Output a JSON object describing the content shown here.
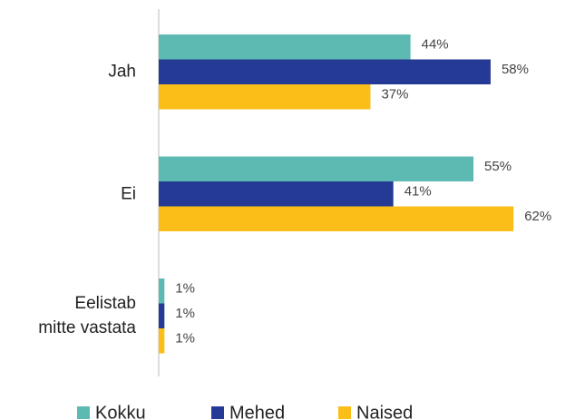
{
  "chart_data": {
    "type": "hbar",
    "categories": [
      "Jah",
      "Ei",
      "Eelistab\nmitte vastata"
    ],
    "series": [
      {
        "name": "Kokku",
        "color": "#5cbab3",
        "values": [
          44,
          55,
          1
        ],
        "value_labels": [
          "44%",
          "55%",
          "1%"
        ]
      },
      {
        "name": "Mehed",
        "color": "#243a94",
        "values": [
          58,
          41,
          1
        ],
        "value_labels": [
          "58%",
          "41%",
          "1%"
        ]
      },
      {
        "name": "Naised",
        "color": "#fbbd18",
        "values": [
          37,
          62,
          1
        ],
        "value_labels": [
          "37%",
          "62%",
          "1%"
        ]
      }
    ],
    "legend": "bottom"
  }
}
